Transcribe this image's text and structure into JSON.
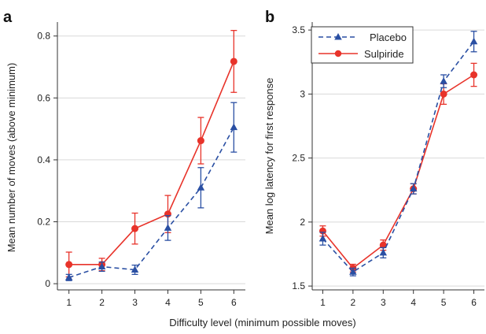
{
  "figure": {
    "shared_xlabel": "Difficulty level (minimum possible moves)",
    "colors": {
      "placebo": "#2a4fa3",
      "sulpiride": "#e8332a",
      "grid": "#d9d9d9",
      "axis": "#333333"
    }
  },
  "legend": {
    "placement": "top-left of panel b",
    "items": [
      {
        "label": "Placebo",
        "marker": "triangle",
        "line": "dashed"
      },
      {
        "label": "Sulpiride",
        "marker": "circle",
        "line": "solid"
      }
    ]
  },
  "chart_data": [
    {
      "panel": "a",
      "type": "line",
      "title": "",
      "xlabel": "",
      "ylabel": "Mean number of moves (above minimum)",
      "x": [
        1,
        2,
        3,
        4,
        5,
        6
      ],
      "xticks": [
        "1",
        "2",
        "3",
        "4",
        "5",
        "6"
      ],
      "ylim": [
        -0.02,
        0.84
      ],
      "yticks": [
        "0",
        "0.2",
        "0.4",
        "0.6",
        "0.8"
      ],
      "ytick_values": [
        0,
        0.2,
        0.4,
        0.6,
        0.8
      ],
      "grid": "horizontal",
      "series": [
        {
          "name": "Placebo",
          "values": [
            0.02,
            0.055,
            0.045,
            0.18,
            0.31,
            0.505
          ],
          "err": [
            0.01,
            0.015,
            0.015,
            0.04,
            0.065,
            0.08
          ]
        },
        {
          "name": "Sulpiride",
          "values": [
            0.062,
            0.062,
            0.178,
            0.225,
            0.462,
            0.718
          ],
          "err": [
            0.04,
            0.02,
            0.05,
            0.06,
            0.075,
            0.1
          ]
        }
      ]
    },
    {
      "panel": "b",
      "type": "line",
      "title": "",
      "xlabel": "",
      "ylabel": "Mean log latency for first response",
      "x": [
        1,
        2,
        3,
        4,
        5,
        6
      ],
      "xticks": [
        "1",
        "2",
        "3",
        "4",
        "5",
        "6"
      ],
      "ylim": [
        1.47,
        3.55
      ],
      "yticks": [
        "1.5",
        "2",
        "2.5",
        "3",
        "3.5"
      ],
      "ytick_values": [
        1.5,
        2,
        2.5,
        3,
        3.5
      ],
      "grid": "horizontal",
      "series": [
        {
          "name": "Placebo",
          "values": [
            1.87,
            1.61,
            1.76,
            2.26,
            3.1,
            3.41
          ],
          "err": [
            0.05,
            0.03,
            0.04,
            0.04,
            0.05,
            0.08
          ]
        },
        {
          "name": "Sulpiride",
          "values": [
            1.93,
            1.64,
            1.82,
            2.26,
            3.0,
            3.15
          ],
          "err": [
            0.04,
            0.03,
            0.04,
            0.04,
            0.08,
            0.09
          ]
        }
      ]
    }
  ]
}
